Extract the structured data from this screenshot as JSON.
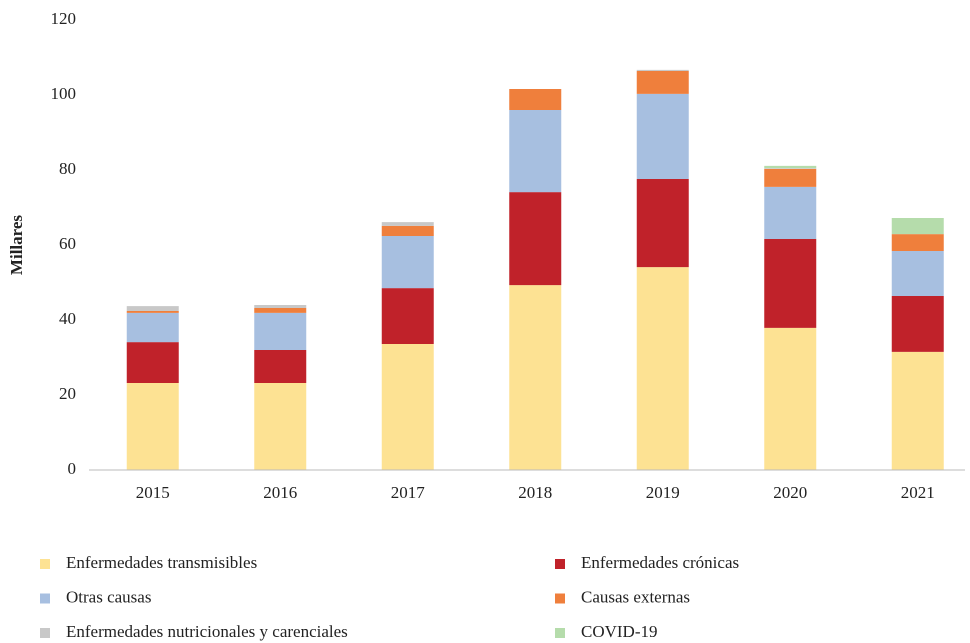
{
  "chart_data": {
    "type": "stacked_bar",
    "y_label": "Millares",
    "categories": [
      "2015",
      "2016",
      "2017",
      "2018",
      "2019",
      "2020",
      "2021"
    ],
    "series": [
      {
        "name": "Enfermedades transmisibles",
        "color": "#fde293",
        "values": [
          23.2,
          23.2,
          33.6,
          49.3,
          54.1,
          37.9,
          31.5
        ]
      },
      {
        "name": "Enfermedades crónicas",
        "color": "#c0222a",
        "values": [
          10.9,
          8.8,
          14.9,
          24.8,
          23.5,
          23.7,
          14.9
        ]
      },
      {
        "name": "Otras causas",
        "color": "#a7bfe0",
        "values": [
          7.8,
          9.9,
          13.9,
          21.9,
          22.7,
          13.9,
          12.0
        ]
      },
      {
        "name": "Causas externas",
        "color": "#ef7f3c",
        "values": [
          0.5,
          1.3,
          2.7,
          5.6,
          6.1,
          4.8,
          4.5
        ]
      },
      {
        "name": "Enfermedades nutricionales y carenciales",
        "color": "#c8c8c8",
        "values": [
          1.3,
          0.8,
          1.0,
          0,
          0.3,
          0.2,
          0
        ]
      },
      {
        "name": "COVID-19",
        "color": "#b5dcab",
        "values": [
          0,
          0,
          0,
          0,
          0,
          0.6,
          4.3
        ]
      }
    ],
    "ylim": [
      0,
      120
    ],
    "yticks": [
      0,
      20,
      40,
      60,
      80,
      100,
      120
    ],
    "grid": false
  }
}
